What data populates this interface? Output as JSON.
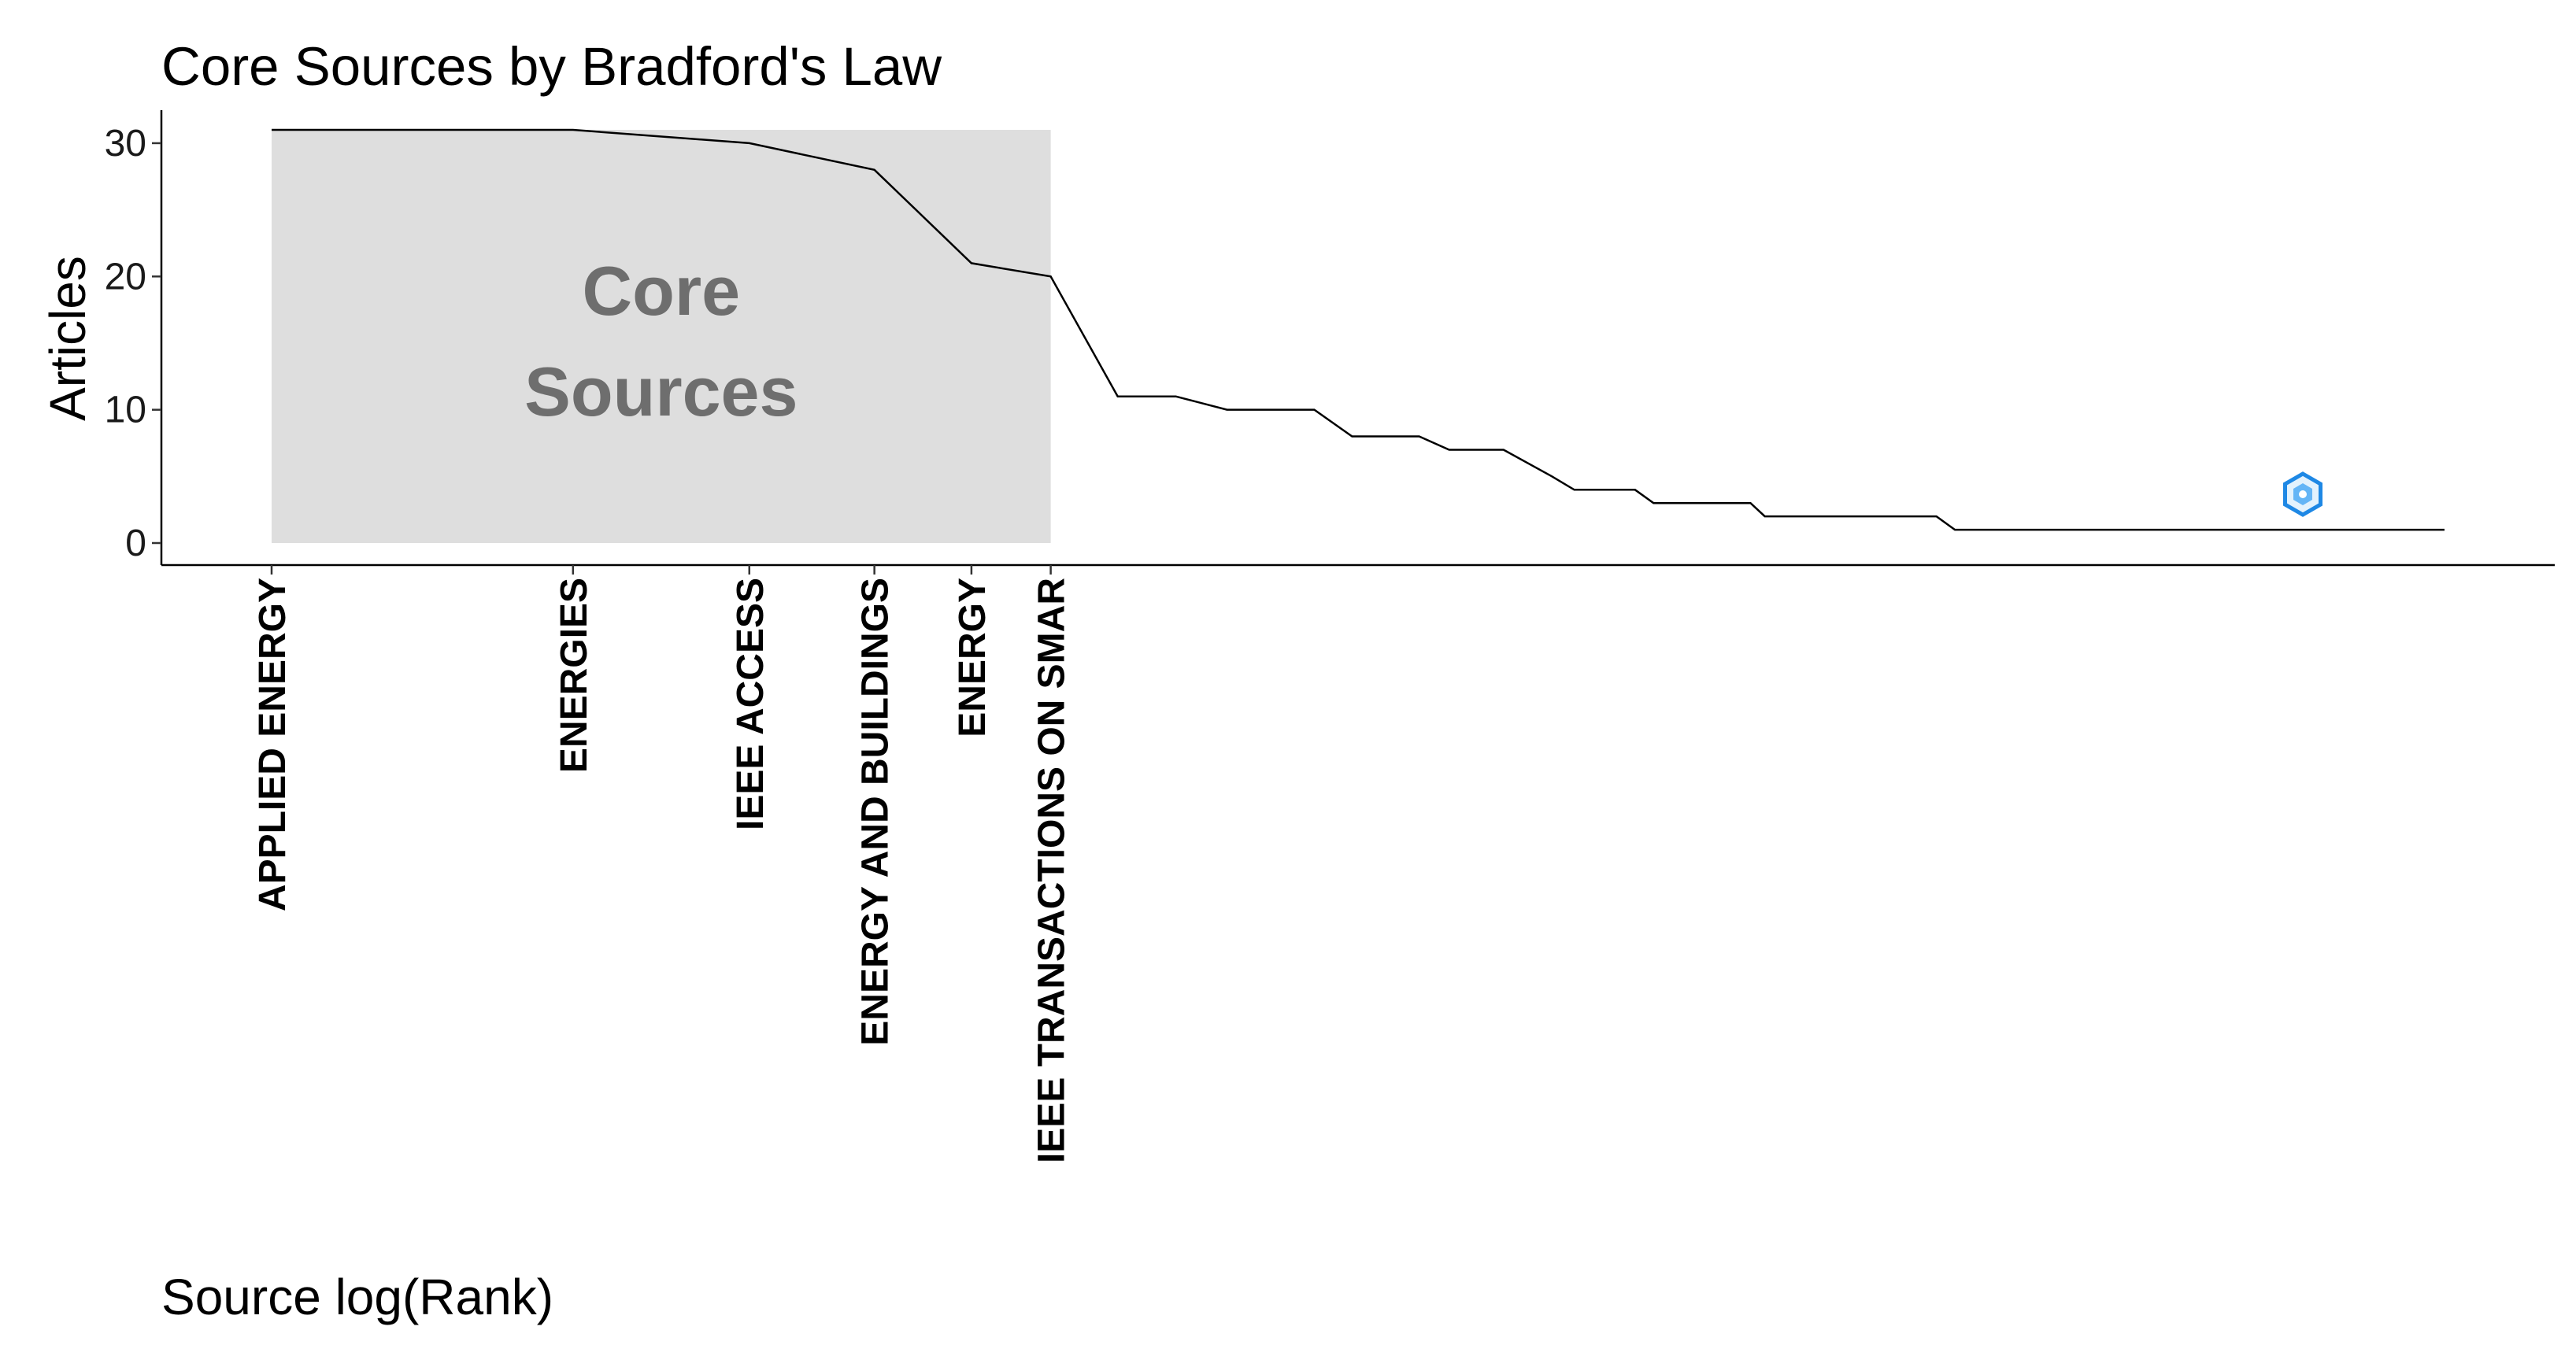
{
  "chart_data": {
    "type": "line",
    "title": "Core Sources by Bradford's Law",
    "xlabel": "Source log(Rank)",
    "ylabel": "Articles",
    "x_scale": "log",
    "xlim": [
      1,
      148
    ],
    "ylim": [
      0,
      31
    ],
    "y_ticks": [
      0,
      10,
      20,
      30
    ],
    "grid": false,
    "line_color": "#000000",
    "shaded_region": {
      "label_lines": [
        "Core",
        "Sources"
      ],
      "x_start": 1,
      "x_end": 6,
      "color": "#dedede",
      "label_color": "#6e6e6e"
    },
    "tick_labels": [
      {
        "rank": 1,
        "label": "APPLIED ENERGY"
      },
      {
        "rank": 2,
        "label": "ENERGIES"
      },
      {
        "rank": 3,
        "label": "IEEE ACCESS"
      },
      {
        "rank": 4,
        "label": "ENERGY AND BUILDINGS"
      },
      {
        "rank": 5,
        "label": "ENERGY"
      },
      {
        "rank": 6,
        "label": "IEEE TRANSACTIONS ON SMAR"
      }
    ],
    "points": [
      {
        "x": 1,
        "y": 31
      },
      {
        "x": 2,
        "y": 31
      },
      {
        "x": 3,
        "y": 30
      },
      {
        "x": 4,
        "y": 28
      },
      {
        "x": 5,
        "y": 21
      },
      {
        "x": 6,
        "y": 20
      },
      {
        "x": 7,
        "y": 11
      },
      {
        "x": 8,
        "y": 11
      },
      {
        "x": 9,
        "y": 10
      },
      {
        "x": 11,
        "y": 10
      },
      {
        "x": 12,
        "y": 8
      },
      {
        "x": 14,
        "y": 8
      },
      {
        "x": 15,
        "y": 7
      },
      {
        "x": 17,
        "y": 7
      },
      {
        "x": 19,
        "y": 5
      },
      {
        "x": 20,
        "y": 4
      },
      {
        "x": 23,
        "y": 4
      },
      {
        "x": 24,
        "y": 3
      },
      {
        "x": 30,
        "y": 3
      },
      {
        "x": 31,
        "y": 2
      },
      {
        "x": 46,
        "y": 2
      },
      {
        "x": 48,
        "y": 1
      },
      {
        "x": 148,
        "y": 1
      }
    ]
  },
  "watermark": {
    "icon": "badge-logo-icon",
    "color": "#1e88e5"
  }
}
